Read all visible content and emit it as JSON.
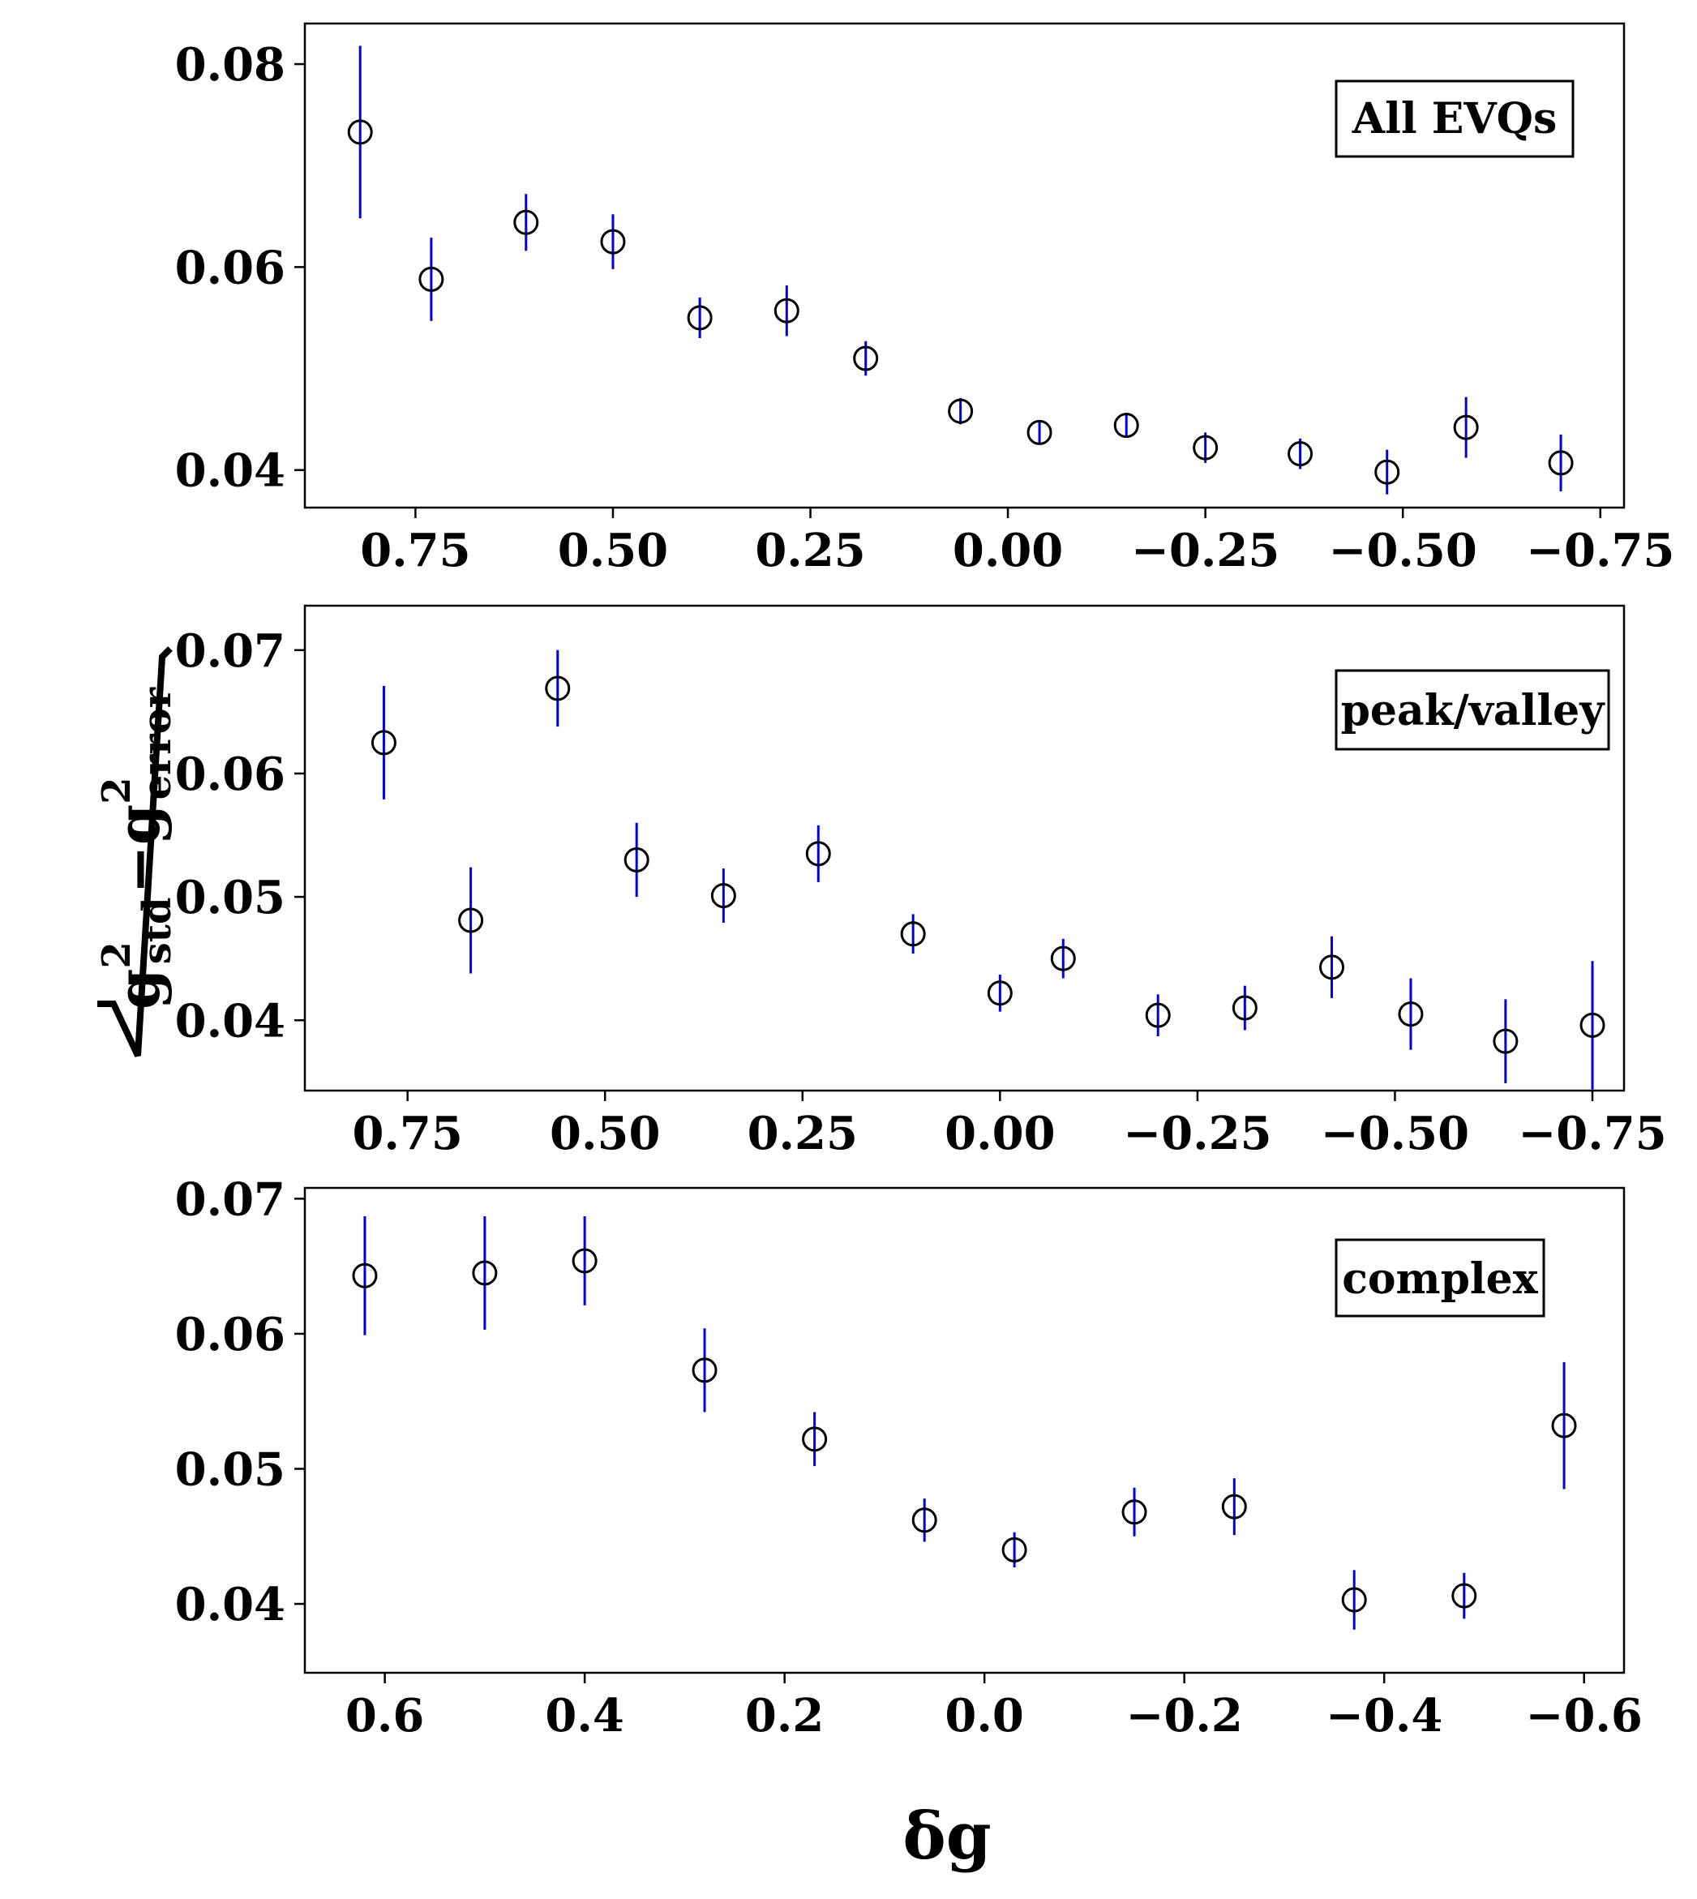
{
  "chart_data": [
    {
      "type": "scatter",
      "label": "All EVQs",
      "x": [
        0.82,
        0.73,
        0.61,
        0.5,
        0.39,
        0.28,
        0.18,
        0.06,
        -0.04,
        -0.15,
        -0.25,
        -0.37,
        -0.48,
        -0.58,
        -0.7
      ],
      "y": [
        0.0733,
        0.0588,
        0.0644,
        0.0625,
        0.055,
        0.0557,
        0.051,
        0.0458,
        0.0437,
        0.0444,
        0.0422,
        0.0416,
        0.0398,
        0.0442,
        0.0407
      ],
      "yerr": [
        0.0085,
        0.0041,
        0.0028,
        0.0027,
        0.002,
        0.0025,
        0.0017,
        0.0013,
        0.001,
        0.0011,
        0.0015,
        0.0015,
        0.0022,
        0.003,
        0.0028
      ],
      "xlim": [
        0.89,
        -0.78
      ],
      "ylim": [
        0.0363,
        0.084
      ],
      "xticks": [
        0.75,
        0.5,
        0.25,
        0.0,
        -0.25,
        -0.5,
        -0.75
      ],
      "xticklabels": [
        "0.75",
        "0.50",
        "0.25",
        "0.00",
        "−0.25",
        "−0.50",
        "−0.75"
      ],
      "yticks": [
        0.04,
        0.06,
        0.08
      ],
      "yticklabels": [
        "0.04",
        "0.06",
        "0.08"
      ],
      "marker_color": "#000000",
      "errorbar_color": "#0000dd"
    },
    {
      "type": "scatter",
      "label": "peak/valley",
      "x": [
        0.78,
        0.67,
        0.56,
        0.46,
        0.35,
        0.23,
        0.11,
        0.0,
        -0.08,
        -0.2,
        -0.31,
        -0.42,
        -0.52,
        -0.64,
        -0.75
      ],
      "y": [
        0.0625,
        0.0481,
        0.0669,
        0.053,
        0.0501,
        0.0535,
        0.047,
        0.0422,
        0.045,
        0.0404,
        0.041,
        0.0443,
        0.0405,
        0.0383,
        0.0396
      ],
      "yerr": [
        0.0046,
        0.0043,
        0.0031,
        0.003,
        0.0022,
        0.0023,
        0.0016,
        0.0015,
        0.0016,
        0.0017,
        0.0018,
        0.0025,
        0.0029,
        0.0034,
        0.0052
      ],
      "xlim": [
        0.88,
        -0.79
      ],
      "ylim": [
        0.0343,
        0.0736
      ],
      "xticks": [
        0.75,
        0.5,
        0.25,
        0.0,
        -0.25,
        -0.5,
        -0.75
      ],
      "xticklabels": [
        "0.75",
        "0.50",
        "0.25",
        "0.00",
        "−0.25",
        "−0.50",
        "−0.75"
      ],
      "yticks": [
        0.04,
        0.05,
        0.06,
        0.07
      ],
      "yticklabels": [
        "0.04",
        "0.05",
        "0.06",
        "0.07"
      ],
      "marker_color": "#000000",
      "errorbar_color": "#0000dd"
    },
    {
      "type": "scatter",
      "label": "complex",
      "x": [
        0.62,
        0.5,
        0.4,
        0.28,
        0.17,
        0.06,
        -0.03,
        -0.15,
        -0.25,
        -0.37,
        -0.48,
        -0.58
      ],
      "y": [
        0.0643,
        0.0645,
        0.0654,
        0.0573,
        0.0522,
        0.0462,
        0.044,
        0.0468,
        0.0472,
        0.0403,
        0.0406,
        0.0532
      ],
      "yerr": [
        0.0044,
        0.0042,
        0.0033,
        0.0031,
        0.002,
        0.0016,
        0.0013,
        0.0018,
        0.0021,
        0.0022,
        0.0017,
        0.0047
      ],
      "xlim": [
        0.68,
        -0.64
      ],
      "ylim": [
        0.0349,
        0.0708
      ],
      "xticks": [
        0.6,
        0.4,
        0.2,
        0.0,
        -0.2,
        -0.4,
        -0.6
      ],
      "xticklabels": [
        "0.6",
        "0.4",
        "0.2",
        "0.0",
        "−0.2",
        "−0.4",
        "−0.6"
      ],
      "yticks": [
        0.04,
        0.05,
        0.06,
        0.07
      ],
      "yticklabels": [
        "0.04",
        "0.05",
        "0.06",
        "0.07"
      ],
      "marker_color": "#000000",
      "errorbar_color": "#0000dd"
    }
  ],
  "axes": {
    "xlabel": "δg",
    "ylabel": {
      "g_symbol": "g",
      "std_sub": "std",
      "error_sub": "error",
      "power": "2",
      "minus": "−"
    }
  }
}
